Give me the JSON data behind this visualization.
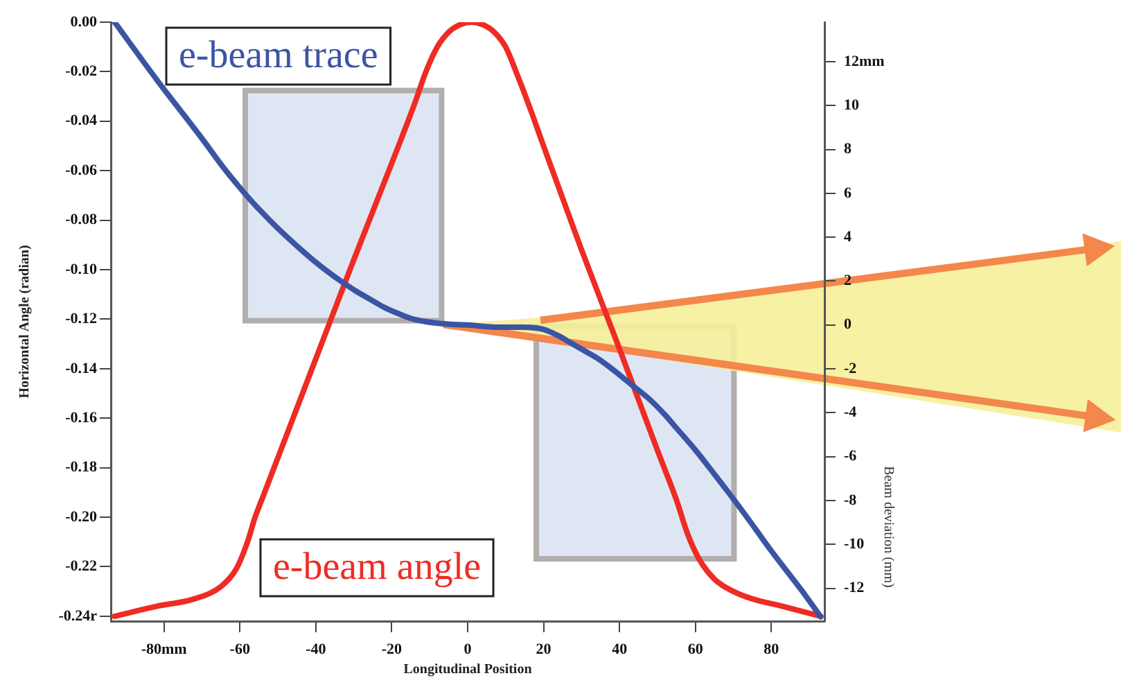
{
  "chart_data": {
    "type": "line",
    "xlabel": "Longitudinal Position",
    "ylabel": "Horizontal Angle (radian)",
    "y2label": "Beam deviation (mm)",
    "series": [
      {
        "name": "e-beam trace",
        "color": "#3b54a4",
        "axis": "y2",
        "x": [
          -93,
          -82,
          -70,
          -64,
          -58,
          -54,
          -50,
          -45,
          -41,
          -37,
          -33,
          -29,
          -25,
          -22,
          -18,
          -15,
          -11,
          -6,
          0,
          8,
          14,
          20,
          24,
          27,
          30,
          34,
          38,
          43,
          48,
          52,
          55,
          60,
          65,
          69,
          75,
          80,
          88,
          93
        ],
        "values": [
          13.8,
          11.2,
          8.5,
          7.1,
          5.85,
          5.1,
          4.4,
          3.6,
          3.0,
          2.45,
          1.95,
          1.5,
          1.1,
          0.8,
          0.5,
          0.3,
          0.15,
          0.05,
          0.0,
          -0.1,
          -0.1,
          -0.2,
          -0.5,
          -0.8,
          -1.1,
          -1.5,
          -2.0,
          -2.7,
          -3.4,
          -4.1,
          -4.7,
          -5.7,
          -6.8,
          -7.7,
          -9.1,
          -10.3,
          -12.1,
          -13.3
        ]
      },
      {
        "name": "e-beam angle",
        "color": "#ee2c24",
        "x": [
          -93,
          -82,
          -72,
          -65,
          -61,
          -58,
          -56,
          -54,
          -50,
          -40,
          -30,
          -20,
          -14,
          -11,
          -8,
          -5,
          -2,
          1,
          4,
          7,
          10,
          13,
          16,
          20,
          30,
          40,
          50,
          55,
          58,
          61,
          65,
          70,
          75,
          83,
          93
        ],
        "values": [
          -0.24,
          -0.236,
          -0.233,
          -0.228,
          -0.221,
          -0.21,
          -0.2,
          -0.192,
          -0.176,
          -0.136,
          -0.096,
          -0.057,
          -0.033,
          -0.02,
          -0.01,
          -0.004,
          -0.001,
          0.0,
          -0.001,
          -0.004,
          -0.01,
          -0.021,
          -0.033,
          -0.05,
          -0.092,
          -0.132,
          -0.173,
          -0.193,
          -0.207,
          -0.217,
          -0.225,
          -0.23,
          -0.233,
          -0.236,
          -0.24
        ]
      }
    ],
    "xlim": [
      -94,
      94
    ],
    "xticks": [
      {
        "value": -80,
        "label": "-80mm"
      },
      -60,
      -40,
      -20,
      0,
      20,
      40,
      60,
      80
    ],
    "ylim": [
      -0.242,
      0
    ],
    "yticks": [
      {
        "value": 0,
        "label": "0.00"
      },
      -0.02,
      -0.04,
      -0.06,
      -0.08,
      {
        "value": -0.1,
        "label": "-0.10"
      },
      -0.12,
      -0.14,
      -0.16,
      -0.18,
      {
        "value": -0.2,
        "label": "-0.20"
      },
      -0.22,
      {
        "value": -0.24,
        "label": "-0.24r"
      }
    ],
    "y2lim": [
      -13.5,
      13.8
    ],
    "y2ticks": [
      {
        "value": 12,
        "label": "12mm"
      },
      10,
      8,
      6,
      4,
      2,
      0,
      -2,
      -4,
      -6,
      -8,
      -10,
      -12
    ],
    "grid": false,
    "legend": false,
    "line_style": "solid"
  }
}
